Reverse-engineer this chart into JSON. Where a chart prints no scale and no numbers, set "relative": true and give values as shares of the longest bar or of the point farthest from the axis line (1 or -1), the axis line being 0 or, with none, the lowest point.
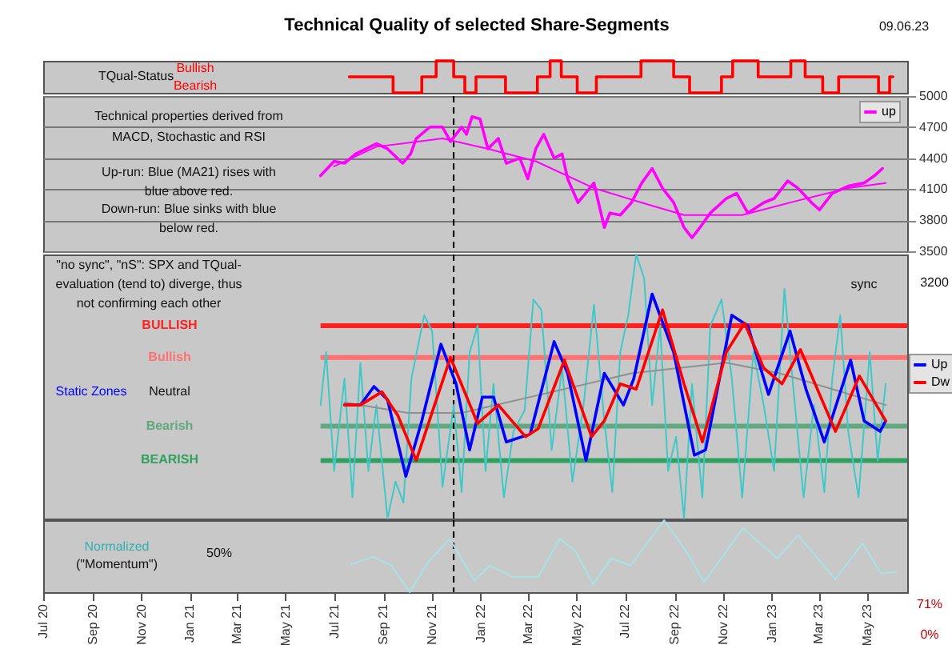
{
  "chart_data": [
    {
      "type": "step",
      "title": "Technical Quality of selected Share-Segments",
      "annotations": [
        "09.06.23",
        "TQual-Status",
        "Bullish",
        "Bearish"
      ],
      "relative": true,
      "tick_labels": false,
      "xlim": [
        "2020-07-01",
        "2023-06-20"
      ],
      "series": [
        {
          "color": "#ff0000",
          "x": [
            "2021-07-20",
            "2021-09-13",
            "2021-10-19",
            "2021-11-06",
            "2021-11-28",
            "2021-12-12",
            "2021-12-26",
            "2022-02-01",
            "2022-03-13",
            "2022-03-29",
            "2022-04-12",
            "2022-05-02",
            "2022-05-26",
            "2022-07-21",
            "2022-08-31",
            "2022-09-20",
            "2022-10-30",
            "2022-11-13",
            "2022-12-15",
            "2023-01-25",
            "2023-02-12",
            "2023-03-06",
            "2023-03-26",
            "2023-05-15",
            "2023-05-29",
            "2023-06-02"
          ],
          "values": [
            0.5,
            0,
            0.5,
            1,
            0.5,
            0,
            0.5,
            0,
            0.5,
            1,
            0.5,
            0,
            0.5,
            1,
            0.5,
            0,
            0.5,
            1,
            0.5,
            1,
            0.5,
            0,
            0.5,
            0,
            0.5,
            0.5
          ]
        }
      ]
    },
    {
      "type": "line",
      "annotations": [
        "Technical properties derived from",
        "MACD, Stochastic and RSI",
        "Up-run: Blue (MA21) rises with",
        "blue above red.",
        "Down-run: Blue sinks with blue",
        "below red."
      ],
      "xlim": [
        "2020-07-01",
        "2023-06-20"
      ],
      "ylim": [
        3500,
        5000
      ],
      "yticks": [
        3500,
        3800,
        4100,
        4400,
        4700,
        5000
      ],
      "grid": "y",
      "legend": "right",
      "tick_labels": "y",
      "ref_lines": [
        {
          "axis": "x",
          "value": "2021-11-28",
          "color": "#000000",
          "line_style": "dashed"
        }
      ],
      "series": [
        {
          "name": "up",
          "color": "#ff00ff",
          "x": [
            "2021-06-14",
            "2021-07-01",
            "2021-07-14",
            "2021-07-28",
            "2021-08-23",
            "2021-09-06",
            "2021-09-25",
            "2021-10-05",
            "2021-10-12",
            "2021-10-29",
            "2021-11-14",
            "2021-11-24",
            "2021-12-08",
            "2021-12-14",
            "2021-12-21",
            "2021-12-31",
            "2022-01-10",
            "2022-01-23",
            "2022-02-02",
            "2022-02-19",
            "2022-03-01",
            "2022-03-11",
            "2022-03-21",
            "2022-04-03",
            "2022-04-13",
            "2022-04-20",
            "2022-05-03",
            "2022-05-23",
            "2022-06-05",
            "2022-06-12",
            "2022-06-25",
            "2022-07-09",
            "2022-07-22",
            "2022-08-04",
            "2022-08-17",
            "2022-08-31",
            "2022-09-13",
            "2022-09-23",
            "2022-10-03",
            "2022-10-16",
            "2022-11-05",
            "2022-11-18",
            "2022-12-02",
            "2022-12-22",
            "2023-01-04",
            "2023-01-21",
            "2023-02-03",
            "2023-02-20",
            "2023-03-02",
            "2023-03-18",
            "2023-04-07",
            "2023-04-27",
            "2023-05-10",
            "2023-05-20"
          ],
          "values": [
            4230,
            4370,
            4350,
            4440,
            4540,
            4490,
            4350,
            4440,
            4590,
            4700,
            4700,
            4560,
            4700,
            4630,
            4800,
            4780,
            4490,
            4590,
            4350,
            4400,
            4200,
            4490,
            4630,
            4400,
            4440,
            4200,
            3970,
            4160,
            3730,
            3870,
            3850,
            3970,
            4160,
            4300,
            4110,
            3970,
            3730,
            3630,
            3730,
            3870,
            4010,
            4060,
            3870,
            3970,
            4010,
            4180,
            4110,
            3970,
            3900,
            4060,
            4130,
            4160,
            4230,
            4300
          ]
        },
        {
          "color": "#ff00ff",
          "x": [
            "2021-07-01",
            "2021-08-23",
            "2021-11-14",
            "2022-01-10",
            "2022-03-11",
            "2022-05-23",
            "2022-07-22",
            "2022-09-13",
            "2022-11-25",
            "2023-02-03",
            "2023-04-07",
            "2023-05-24"
          ],
          "values": [
            4320,
            4510,
            4590,
            4490,
            4370,
            4110,
            3970,
            3850,
            3850,
            3990,
            4110,
            4160
          ]
        }
      ]
    },
    {
      "type": "line",
      "relative": true,
      "annotations": [
        "\"no sync\", \"nS\": SPX and TQual-",
        "evaluation (tend to) diverge, thus",
        "not confirming each other",
        "sync",
        "3200",
        "Static Zones",
        "Neutral"
      ],
      "xlim": [
        "2020-07-01",
        "2023-06-20"
      ],
      "legend": "right",
      "tick_labels": false,
      "ref_lines": [
        {
          "axis": "x",
          "value": "2021-11-28",
          "color": "#000000",
          "line_style": "dashed"
        },
        {
          "axis": "y",
          "value": 0.73,
          "label": "BULLISH",
          "color": "#ff2020"
        },
        {
          "axis": "y",
          "value": 0.61,
          "label": "Bullish",
          "color": "#ff7070"
        },
        {
          "axis": "y",
          "value": 0.35,
          "label": "Bearish",
          "color": "#60a880"
        },
        {
          "axis": "y",
          "value": 0.22,
          "label": "BEARISH",
          "color": "#30a060"
        }
      ],
      "series": [
        {
          "color": "#40c8c8",
          "x": [
            "2021-06-14",
            "2021-06-21",
            "2021-07-01",
            "2021-07-14",
            "2021-07-24",
            "2021-08-03",
            "2021-08-13",
            "2021-08-23",
            "2021-09-06",
            "2021-09-16",
            "2021-09-26",
            "2021-10-06",
            "2021-10-22",
            "2021-11-01",
            "2021-11-14",
            "2021-11-28",
            "2021-12-08",
            "2021-12-18",
            "2021-12-28",
            "2022-01-07",
            "2022-01-17",
            "2022-01-30",
            "2022-02-11",
            "2022-02-25",
            "2022-03-08",
            "2022-03-18",
            "2022-03-31",
            "2022-04-13",
            "2022-04-26",
            "2022-05-10",
            "2022-05-23",
            "2022-06-05",
            "2022-06-15",
            "2022-06-25",
            "2022-07-05",
            "2022-07-15",
            "2022-07-25",
            "2022-08-04",
            "2022-08-14",
            "2022-08-24",
            "2022-09-03",
            "2022-09-13",
            "2022-09-23",
            "2022-10-06",
            "2022-10-16",
            "2022-10-30",
            "2022-11-12",
            "2022-11-25",
            "2022-12-09",
            "2022-12-22",
            "2023-01-04",
            "2023-01-17",
            "2023-01-27",
            "2023-02-10",
            "2023-02-23",
            "2023-03-08",
            "2023-03-18",
            "2023-03-28",
            "2023-04-07",
            "2023-04-20",
            "2023-05-04",
            "2023-05-14",
            "2023-05-24"
          ],
          "values": [
            0.43,
            0.63,
            0.18,
            0.53,
            0.08,
            0.59,
            0.18,
            0.43,
            0,
            0.14,
            0.06,
            0.53,
            0.77,
            0.71,
            0.12,
            0.43,
            0.1,
            0.63,
            0.73,
            0.18,
            0.51,
            0.08,
            0.33,
            0.41,
            0.83,
            0.79,
            0.26,
            0.57,
            0.14,
            0.43,
            0.81,
            0.37,
            0.1,
            0.63,
            0.77,
            1,
            0.91,
            0.43,
            0.73,
            0.18,
            0.31,
            0,
            0.51,
            0.08,
            0.73,
            0.83,
            0.53,
            0.08,
            0.63,
            0.43,
            0.18,
            0.87,
            0.53,
            0.08,
            0.43,
            0.1,
            0.53,
            0.77,
            0.33,
            0.08,
            0.63,
            0.22,
            0.51
          ]
        },
        {
          "color": "#909090",
          "x": [
            "2021-07-14",
            "2021-10-02",
            "2021-12-08",
            "2022-03-18",
            "2022-07-09",
            "2022-11-05",
            "2023-01-11",
            "2023-03-18",
            "2023-05-24"
          ],
          "values": [
            0.44,
            0.4,
            0.4,
            0.47,
            0.55,
            0.59,
            0.55,
            0.49,
            0.43
          ]
        },
        {
          "name": "Up",
          "color": "#0000ff",
          "x": [
            "2021-07-14",
            "2021-08-03",
            "2021-08-20",
            "2021-09-06",
            "2021-09-29",
            "2021-10-19",
            "2021-11-12",
            "2021-12-01",
            "2021-12-18",
            "2022-01-03",
            "2022-01-17",
            "2022-02-02",
            "2022-03-04",
            "2022-04-03",
            "2022-04-20",
            "2022-05-13",
            "2022-06-05",
            "2022-06-29",
            "2022-07-12",
            "2022-08-04",
            "2022-08-31",
            "2022-09-26",
            "2022-10-10",
            "2022-11-12",
            "2022-12-02",
            "2022-12-28",
            "2023-01-24",
            "2023-02-13",
            "2023-03-08",
            "2023-04-10",
            "2023-04-27",
            "2023-05-17",
            "2023-05-24"
          ],
          "values": [
            0.43,
            0.43,
            0.5,
            0.45,
            0.16,
            0.37,
            0.66,
            0.51,
            0.26,
            0.46,
            0.46,
            0.29,
            0.32,
            0.67,
            0.55,
            0.22,
            0.55,
            0.43,
            0.53,
            0.85,
            0.63,
            0.24,
            0.26,
            0.77,
            0.73,
            0.47,
            0.71,
            0.49,
            0.29,
            0.6,
            0.37,
            0.33,
            0.37
          ]
        },
        {
          "name": "Dw",
          "color": "#ff0000",
          "x": [
            "2021-07-14",
            "2021-08-03",
            "2021-08-30",
            "2021-09-19",
            "2021-10-12",
            "2021-11-04",
            "2021-11-24",
            "2021-12-28",
            "2022-01-23",
            "2022-02-26",
            "2022-03-14",
            "2022-04-16",
            "2022-05-20",
            "2022-06-05",
            "2022-06-25",
            "2022-07-15",
            "2022-08-17",
            "2022-09-13",
            "2022-10-06",
            "2022-11-05",
            "2022-11-28",
            "2022-12-22",
            "2023-01-14",
            "2023-02-06",
            "2023-03-22",
            "2023-04-21",
            "2023-05-24"
          ],
          "values": [
            0.43,
            0.43,
            0.48,
            0.39,
            0.22,
            0.43,
            0.61,
            0.36,
            0.43,
            0.31,
            0.34,
            0.6,
            0.31,
            0.37,
            0.51,
            0.49,
            0.79,
            0.51,
            0.29,
            0.63,
            0.74,
            0.57,
            0.51,
            0.64,
            0.33,
            0.54,
            0.37
          ]
        }
      ]
    },
    {
      "type": "line",
      "relative": true,
      "annotations": [
        "Normalized",
        "(\"Momentum\")",
        "50%",
        "71%",
        "0%"
      ],
      "xlim": [
        "2020-07-01",
        "2023-06-20"
      ],
      "tick_labels": "x",
      "xticks": [
        {
          "value": "2020-07-01",
          "label": "Jul 20"
        },
        {
          "value": "2020-09-01",
          "label": "Sep 20"
        },
        {
          "value": "2020-11-01",
          "label": "Nov 20"
        },
        {
          "value": "2021-01-01",
          "label": "Jan 21"
        },
        {
          "value": "2021-03-01",
          "label": "Mar 21"
        },
        {
          "value": "2021-05-01",
          "label": "May 21"
        },
        {
          "value": "2021-07-01",
          "label": "Jul 21"
        },
        {
          "value": "2021-09-01",
          "label": "Sep 21"
        },
        {
          "value": "2021-11-01",
          "label": "Nov 21"
        },
        {
          "value": "2022-01-01",
          "label": "Jan 22"
        },
        {
          "value": "2022-03-01",
          "label": "Mar 22"
        },
        {
          "value": "2022-05-01",
          "label": "May 22"
        },
        {
          "value": "2022-07-01",
          "label": "Jul 22"
        },
        {
          "value": "2022-09-01",
          "label": "Sep 22"
        },
        {
          "value": "2022-11-01",
          "label": "Nov 22"
        },
        {
          "value": "2023-01-01",
          "label": "Jan 23"
        },
        {
          "value": "2023-03-01",
          "label": "Mar 23"
        },
        {
          "value": "2023-05-01",
          "label": "May 23"
        }
      ],
      "ref_lines": [
        {
          "axis": "x",
          "value": "2021-11-28",
          "color": "#000000",
          "line_style": "dashed"
        }
      ],
      "series": [
        {
          "color": "#a8e4e4",
          "x": [
            "2021-07-23",
            "2021-08-19",
            "2021-09-11",
            "2021-10-04",
            "2021-10-27",
            "2021-11-23",
            "2021-12-24",
            "2022-01-12",
            "2022-02-11",
            "2022-03-14",
            "2022-04-10",
            "2022-04-29",
            "2022-05-22",
            "2022-06-14",
            "2022-07-08",
            "2022-08-19",
            "2022-09-15",
            "2022-10-08",
            "2022-11-26",
            "2023-01-08",
            "2023-02-03",
            "2023-03-22",
            "2023-04-25",
            "2023-05-18",
            "2023-06-06"
          ],
          "values": [
            0.39,
            0.49,
            0.37,
            0,
            0.42,
            0.74,
            0.16,
            0.37,
            0.21,
            0.21,
            0.74,
            0.58,
            0.11,
            0.47,
            0.37,
            1,
            0.58,
            0.14,
            0.89,
            0.47,
            0.79,
            0.18,
            0.68,
            0.26,
            0.28
          ]
        }
      ]
    }
  ]
}
